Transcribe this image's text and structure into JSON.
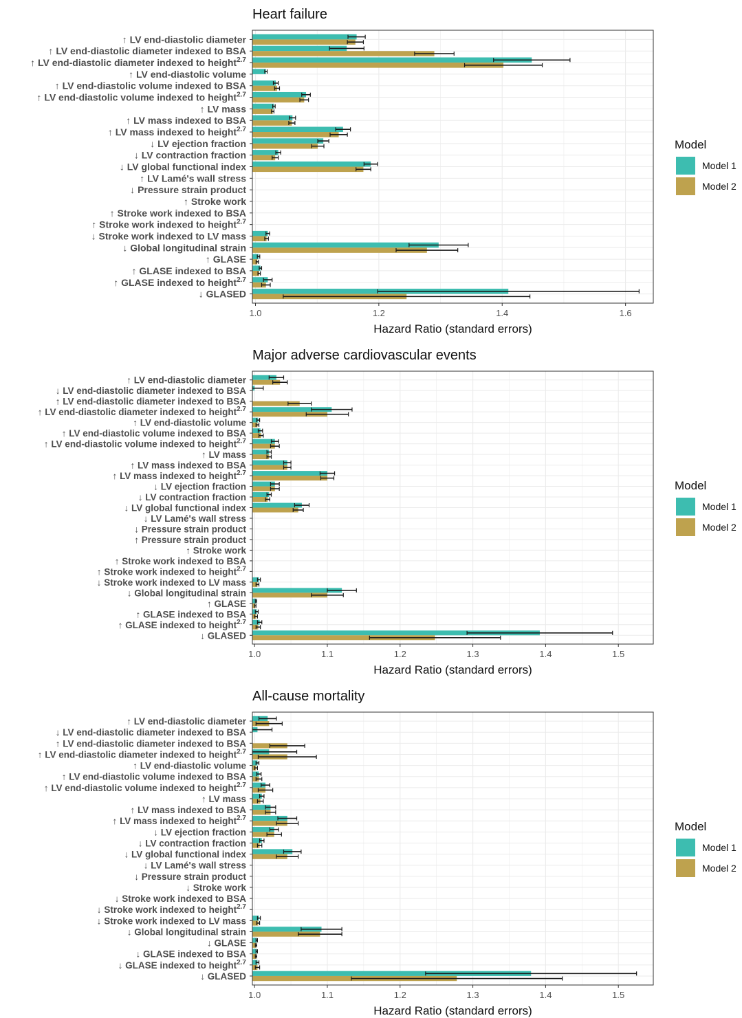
{
  "colors": {
    "model1": "#3dbdb0",
    "model2": "#bea24e",
    "grid": "#ebebeb",
    "panel_border": "#333333",
    "error_bar": "#1a1a1a"
  },
  "chart_data": [
    {
      "type": "bar",
      "orientation": "horizontal",
      "title": "Heart failure",
      "xlabel": "Hazard Ratio (standard errors)",
      "xlim": [
        0.995,
        1.645
      ],
      "xticks": [
        "1.0",
        "1.2",
        "1.4",
        "1.6"
      ],
      "legend": {
        "title": "Model",
        "entries": [
          "Model 1",
          "Model 2"
        ],
        "position": "right"
      },
      "categories": [
        {
          "arrow": "↑",
          "text": "LV end-diastolic diameter",
          "sup": ""
        },
        {
          "arrow": "↑",
          "text": "LV end-diastolic diameter indexed to BSA",
          "sup": ""
        },
        {
          "arrow": "↑",
          "text": "LV end-diastolic diameter indexed to height",
          "sup": "2.7"
        },
        {
          "arrow": "↑",
          "text": "LV end-diastolic volume",
          "sup": ""
        },
        {
          "arrow": "↑",
          "text": "LV end-diastolic volume indexed to BSA",
          "sup": ""
        },
        {
          "arrow": "↑",
          "text": "LV end-diastolic volume indexed to height",
          "sup": "2.7"
        },
        {
          "arrow": "↑",
          "text": "LV mass",
          "sup": ""
        },
        {
          "arrow": "↑",
          "text": "LV mass indexed to BSA",
          "sup": ""
        },
        {
          "arrow": "↑",
          "text": "LV mass indexed to height",
          "sup": "2.7"
        },
        {
          "arrow": "↓",
          "text": "LV ejection fraction",
          "sup": ""
        },
        {
          "arrow": "↓",
          "text": "LV contraction fraction",
          "sup": ""
        },
        {
          "arrow": "↓",
          "text": "LV global functional index",
          "sup": ""
        },
        {
          "arrow": "↑",
          "text": "LV Lamé's wall stress",
          "sup": ""
        },
        {
          "arrow": "↓",
          "text": "Pressure strain product",
          "sup": ""
        },
        {
          "arrow": "↑",
          "text": "Stroke work",
          "sup": ""
        },
        {
          "arrow": "↑",
          "text": "Stroke work indexed to BSA",
          "sup": ""
        },
        {
          "arrow": "↑",
          "text": "Stroke work indexed to height",
          "sup": "2.7"
        },
        {
          "arrow": "↓",
          "text": "Stroke work indexed to LV mass",
          "sup": ""
        },
        {
          "arrow": "↓",
          "text": "Global longitudinal strain",
          "sup": ""
        },
        {
          "arrow": "↑",
          "text": "GLASE",
          "sup": ""
        },
        {
          "arrow": "↑",
          "text": "GLASE indexed to BSA",
          "sup": ""
        },
        {
          "arrow": "↑",
          "text": "GLASE indexed to height",
          "sup": "2.7"
        },
        {
          "arrow": "↓",
          "text": "GLASED",
          "sup": ""
        }
      ],
      "series": [
        {
          "name": "Model 1",
          "values": [
            1.164,
            1.148,
            1.448,
            1.017,
            1.033,
            1.082,
            1.03,
            1.06,
            1.142,
            1.11,
            1.037,
            1.187,
            null,
            null,
            null,
            null,
            null,
            1.02,
            1.297,
            1.005,
            1.008,
            1.02,
            1.41
          ],
          "se": [
            0.014,
            0.028,
            0.062,
            0.002,
            0.004,
            0.007,
            0.002,
            0.005,
            0.012,
            0.009,
            0.004,
            0.011,
            null,
            null,
            null,
            null,
            null,
            0.003,
            0.048,
            0.002,
            0.002,
            0.007,
            0.212
          ]
        },
        {
          "name": "Model 2",
          "values": [
            1.162,
            1.29,
            1.402,
            null,
            1.035,
            1.079,
            1.028,
            1.059,
            1.135,
            1.101,
            1.032,
            1.175,
            null,
            null,
            null,
            null,
            null,
            1.018,
            1.278,
            1.003,
            1.006,
            1.017,
            1.245
          ],
          "se": [
            0.013,
            0.032,
            0.063,
            null,
            0.004,
            0.007,
            0.002,
            0.005,
            0.014,
            0.01,
            0.005,
            0.012,
            null,
            null,
            null,
            null,
            null,
            0.003,
            0.05,
            0.002,
            0.002,
            0.007,
            0.2
          ]
        }
      ]
    },
    {
      "type": "bar",
      "orientation": "horizontal",
      "title": "Major adverse cardiovascular events",
      "xlabel": "Hazard Ratio (standard errors)",
      "xlim": [
        0.997,
        1.548
      ],
      "xticks": [
        "1.0",
        "1.1",
        "1.2",
        "1.3",
        "1.4",
        "1.5"
      ],
      "legend": {
        "title": "Model",
        "entries": [
          "Model 1",
          "Model 2"
        ],
        "position": "right"
      },
      "categories": [
        {
          "arrow": "↑",
          "text": "LV end-diastolic diameter",
          "sup": ""
        },
        {
          "arrow": "↓",
          "text": "LV end-diastolic diameter indexed to BSA",
          "sup": ""
        },
        {
          "arrow": "↑",
          "text": "LV end-diastolic diameter indexed to BSA",
          "sup": ""
        },
        {
          "arrow": "↑",
          "text": "LV end-diastolic diameter indexed to height",
          "sup": "2.7"
        },
        {
          "arrow": "↑",
          "text": "LV end-diastolic volume",
          "sup": ""
        },
        {
          "arrow": "↑",
          "text": "LV end-diastolic volume indexed to BSA",
          "sup": ""
        },
        {
          "arrow": "↑",
          "text": "LV end-diastolic volume indexed to height",
          "sup": "2.7"
        },
        {
          "arrow": "↑",
          "text": "LV mass",
          "sup": ""
        },
        {
          "arrow": "↑",
          "text": "LV mass indexed to BSA",
          "sup": ""
        },
        {
          "arrow": "↑",
          "text": "LV mass indexed to height",
          "sup": "2.7"
        },
        {
          "arrow": "↓",
          "text": "LV ejection fraction",
          "sup": ""
        },
        {
          "arrow": "↓",
          "text": "LV contraction fraction",
          "sup": ""
        },
        {
          "arrow": "↓",
          "text": "LV global functional index",
          "sup": ""
        },
        {
          "arrow": "↓",
          "text": "LV Lamé's wall stress",
          "sup": ""
        },
        {
          "arrow": "↓",
          "text": "Pressure strain product",
          "sup": ""
        },
        {
          "arrow": "↑",
          "text": "Pressure strain product",
          "sup": ""
        },
        {
          "arrow": "↑",
          "text": "Stroke work",
          "sup": ""
        },
        {
          "arrow": "↑",
          "text": "Stroke work indexed to BSA",
          "sup": ""
        },
        {
          "arrow": "↑",
          "text": "Stroke work indexed to height",
          "sup": "2.7"
        },
        {
          "arrow": "↓",
          "text": "Stroke work indexed to LV mass",
          "sup": ""
        },
        {
          "arrow": "↓",
          "text": "Global longitudinal strain",
          "sup": ""
        },
        {
          "arrow": "↑",
          "text": "GLASE",
          "sup": ""
        },
        {
          "arrow": "↑",
          "text": "GLASE indexed to BSA",
          "sup": ""
        },
        {
          "arrow": "↑",
          "text": "GLASE indexed to height",
          "sup": "2.7"
        },
        {
          "arrow": "↓",
          "text": "GLASED",
          "sup": ""
        }
      ],
      "series": [
        {
          "name": "Model 1",
          "values": [
            1.03,
            1.0,
            null,
            1.106,
            1.005,
            1.008,
            1.028,
            1.02,
            1.045,
            1.1,
            1.028,
            1.02,
            1.065,
            null,
            null,
            null,
            null,
            null,
            null,
            1.006,
            1.12,
            1.002,
            1.003,
            1.007,
            1.392
          ],
          "se": [
            0.01,
            0.012,
            null,
            0.028,
            0.002,
            0.003,
            0.005,
            0.003,
            0.005,
            0.01,
            0.006,
            0.003,
            0.01,
            null,
            null,
            null,
            null,
            null,
            null,
            0.002,
            0.02,
            0.001,
            0.002,
            0.003,
            0.1
          ]
        },
        {
          "name": "Model 2",
          "values": [
            1.035,
            null,
            1.062,
            1.1,
            1.004,
            1.009,
            1.028,
            1.02,
            1.045,
            1.1,
            1.028,
            1.018,
            1.06,
            null,
            null,
            null,
            null,
            null,
            null,
            1.004,
            1.1,
            1.001,
            1.002,
            1.005,
            1.248
          ],
          "se": [
            0.01,
            null,
            0.016,
            0.029,
            0.002,
            0.003,
            0.006,
            0.003,
            0.005,
            0.009,
            0.006,
            0.003,
            0.007,
            null,
            null,
            null,
            null,
            null,
            null,
            0.002,
            0.022,
            0.001,
            0.002,
            0.003,
            0.09
          ]
        }
      ]
    },
    {
      "type": "bar",
      "orientation": "horizontal",
      "title": "All-cause mortality",
      "xlabel": "Hazard Ratio (standard errors)",
      "xlim": [
        0.997,
        1.548
      ],
      "xticks": [
        "1.0",
        "1.1",
        "1.2",
        "1.3",
        "1.4",
        "1.5"
      ],
      "legend": {
        "title": "Model",
        "entries": [
          "Model 1",
          "Model 2"
        ],
        "position": "right"
      },
      "categories": [
        {
          "arrow": "↑",
          "text": "LV end-diastolic diameter",
          "sup": ""
        },
        {
          "arrow": "↓",
          "text": "LV end-diastolic diameter indexed to BSA",
          "sup": ""
        },
        {
          "arrow": "↑",
          "text": "LV end-diastolic diameter indexed to BSA",
          "sup": ""
        },
        {
          "arrow": "↑",
          "text": "LV end-diastolic diameter indexed to height",
          "sup": "2.7"
        },
        {
          "arrow": "↑",
          "text": "LV end-diastolic volume",
          "sup": ""
        },
        {
          "arrow": "↑",
          "text": "LV end-diastolic volume indexed to BSA",
          "sup": ""
        },
        {
          "arrow": "↑",
          "text": "LV end-diastolic volume indexed to height",
          "sup": "2.7"
        },
        {
          "arrow": "↑",
          "text": "LV mass",
          "sup": ""
        },
        {
          "arrow": "↑",
          "text": "LV mass indexed to BSA",
          "sup": ""
        },
        {
          "arrow": "↑",
          "text": "LV mass indexed to height",
          "sup": "2.7"
        },
        {
          "arrow": "↓",
          "text": "LV ejection fraction",
          "sup": ""
        },
        {
          "arrow": "↓",
          "text": "LV contraction fraction",
          "sup": ""
        },
        {
          "arrow": "↓",
          "text": "LV global functional index",
          "sup": ""
        },
        {
          "arrow": "↓",
          "text": "LV Lamé's wall stress",
          "sup": ""
        },
        {
          "arrow": "↓",
          "text": "Pressure strain product",
          "sup": ""
        },
        {
          "arrow": "↓",
          "text": "Stroke work",
          "sup": ""
        },
        {
          "arrow": "↓",
          "text": "Stroke work indexed to BSA",
          "sup": ""
        },
        {
          "arrow": "↓",
          "text": "Stroke work indexed to height",
          "sup": "2.7"
        },
        {
          "arrow": "↓",
          "text": "Stroke work indexed to LV mass",
          "sup": ""
        },
        {
          "arrow": "↓",
          "text": "Global longitudinal strain",
          "sup": ""
        },
        {
          "arrow": "↓",
          "text": "GLASE",
          "sup": ""
        },
        {
          "arrow": "↓",
          "text": "GLASE indexed to BSA",
          "sup": ""
        },
        {
          "arrow": "↓",
          "text": "GLASE indexed to height",
          "sup": "2.7"
        },
        {
          "arrow": "↓",
          "text": "GLASED",
          "sup": ""
        }
      ],
      "series": [
        {
          "name": "Model 1",
          "values": [
            1.018,
            1.004,
            null,
            1.02,
            1.004,
            1.006,
            1.015,
            1.01,
            1.022,
            1.045,
            1.027,
            1.01,
            1.052,
            null,
            null,
            null,
            null,
            null,
            1.006,
            1.092,
            1.003,
            1.003,
            1.004,
            1.38
          ],
          "se": [
            0.012,
            0.02,
            null,
            0.038,
            0.002,
            0.003,
            0.006,
            0.003,
            0.007,
            0.013,
            0.006,
            0.003,
            0.012,
            null,
            null,
            null,
            null,
            null,
            0.002,
            0.028,
            0.001,
            0.001,
            0.002,
            0.145
          ]
        },
        {
          "name": "Model 2",
          "values": [
            1.02,
            null,
            1.045,
            1.045,
            1.002,
            1.006,
            1.015,
            1.008,
            1.022,
            1.045,
            1.027,
            1.007,
            1.045,
            null,
            null,
            null,
            null,
            null,
            1.005,
            1.09,
            1.002,
            1.002,
            1.004,
            1.278
          ],
          "se": [
            0.018,
            null,
            0.024,
            0.04,
            0.002,
            0.004,
            0.01,
            0.004,
            0.007,
            0.015,
            0.01,
            0.003,
            0.015,
            null,
            null,
            null,
            null,
            null,
            0.002,
            0.03,
            0.001,
            0.001,
            0.003,
            0.145
          ]
        }
      ]
    }
  ]
}
